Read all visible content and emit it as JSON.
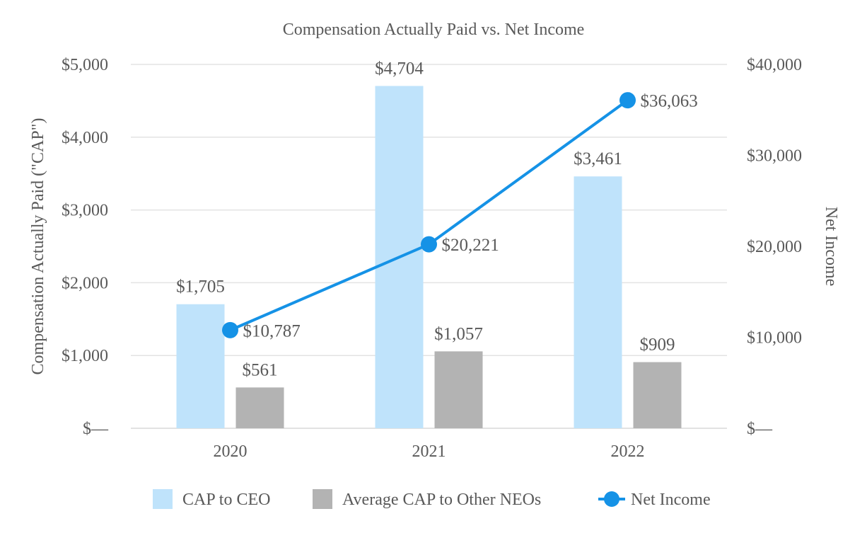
{
  "chart_data": {
    "type": "bar",
    "title": "Compensation Actually Paid vs. Net Income",
    "categories": [
      "2020",
      "2021",
      "2022"
    ],
    "y_left": {
      "label": "Compensation Actually Paid (\"CAP\")",
      "min": 0,
      "max": 5000,
      "step": 1000,
      "tick_labels": [
        "$—",
        "$1,000",
        "$2,000",
        "$3,000",
        "$4,000",
        "$5,000"
      ]
    },
    "y_right": {
      "label": "Net Income",
      "min": 0,
      "max": 40000,
      "step": 10000,
      "tick_labels": [
        "$—",
        "$10,000",
        "$20,000",
        "$30,000",
        "$40,000"
      ]
    },
    "series": [
      {
        "name": "CAP to CEO",
        "kind": "bar",
        "axis": "left",
        "color": "#bfe3fb",
        "values": [
          1705,
          4704,
          3461
        ],
        "labels": [
          "$1,705",
          "$4,704",
          "$3,461"
        ]
      },
      {
        "name": "Average CAP to Other NEOs",
        "kind": "bar",
        "axis": "left",
        "color": "#b3b3b3",
        "values": [
          561,
          1057,
          909
        ],
        "labels": [
          "$561",
          "$1,057",
          "$909"
        ]
      },
      {
        "name": "Net Income",
        "kind": "line",
        "axis": "right",
        "color": "#1592e6",
        "values": [
          10787,
          20221,
          36063
        ],
        "labels": [
          "$10,787",
          "$20,221",
          "$36,063"
        ]
      }
    ],
    "grid": true,
    "legend": "bottom"
  }
}
